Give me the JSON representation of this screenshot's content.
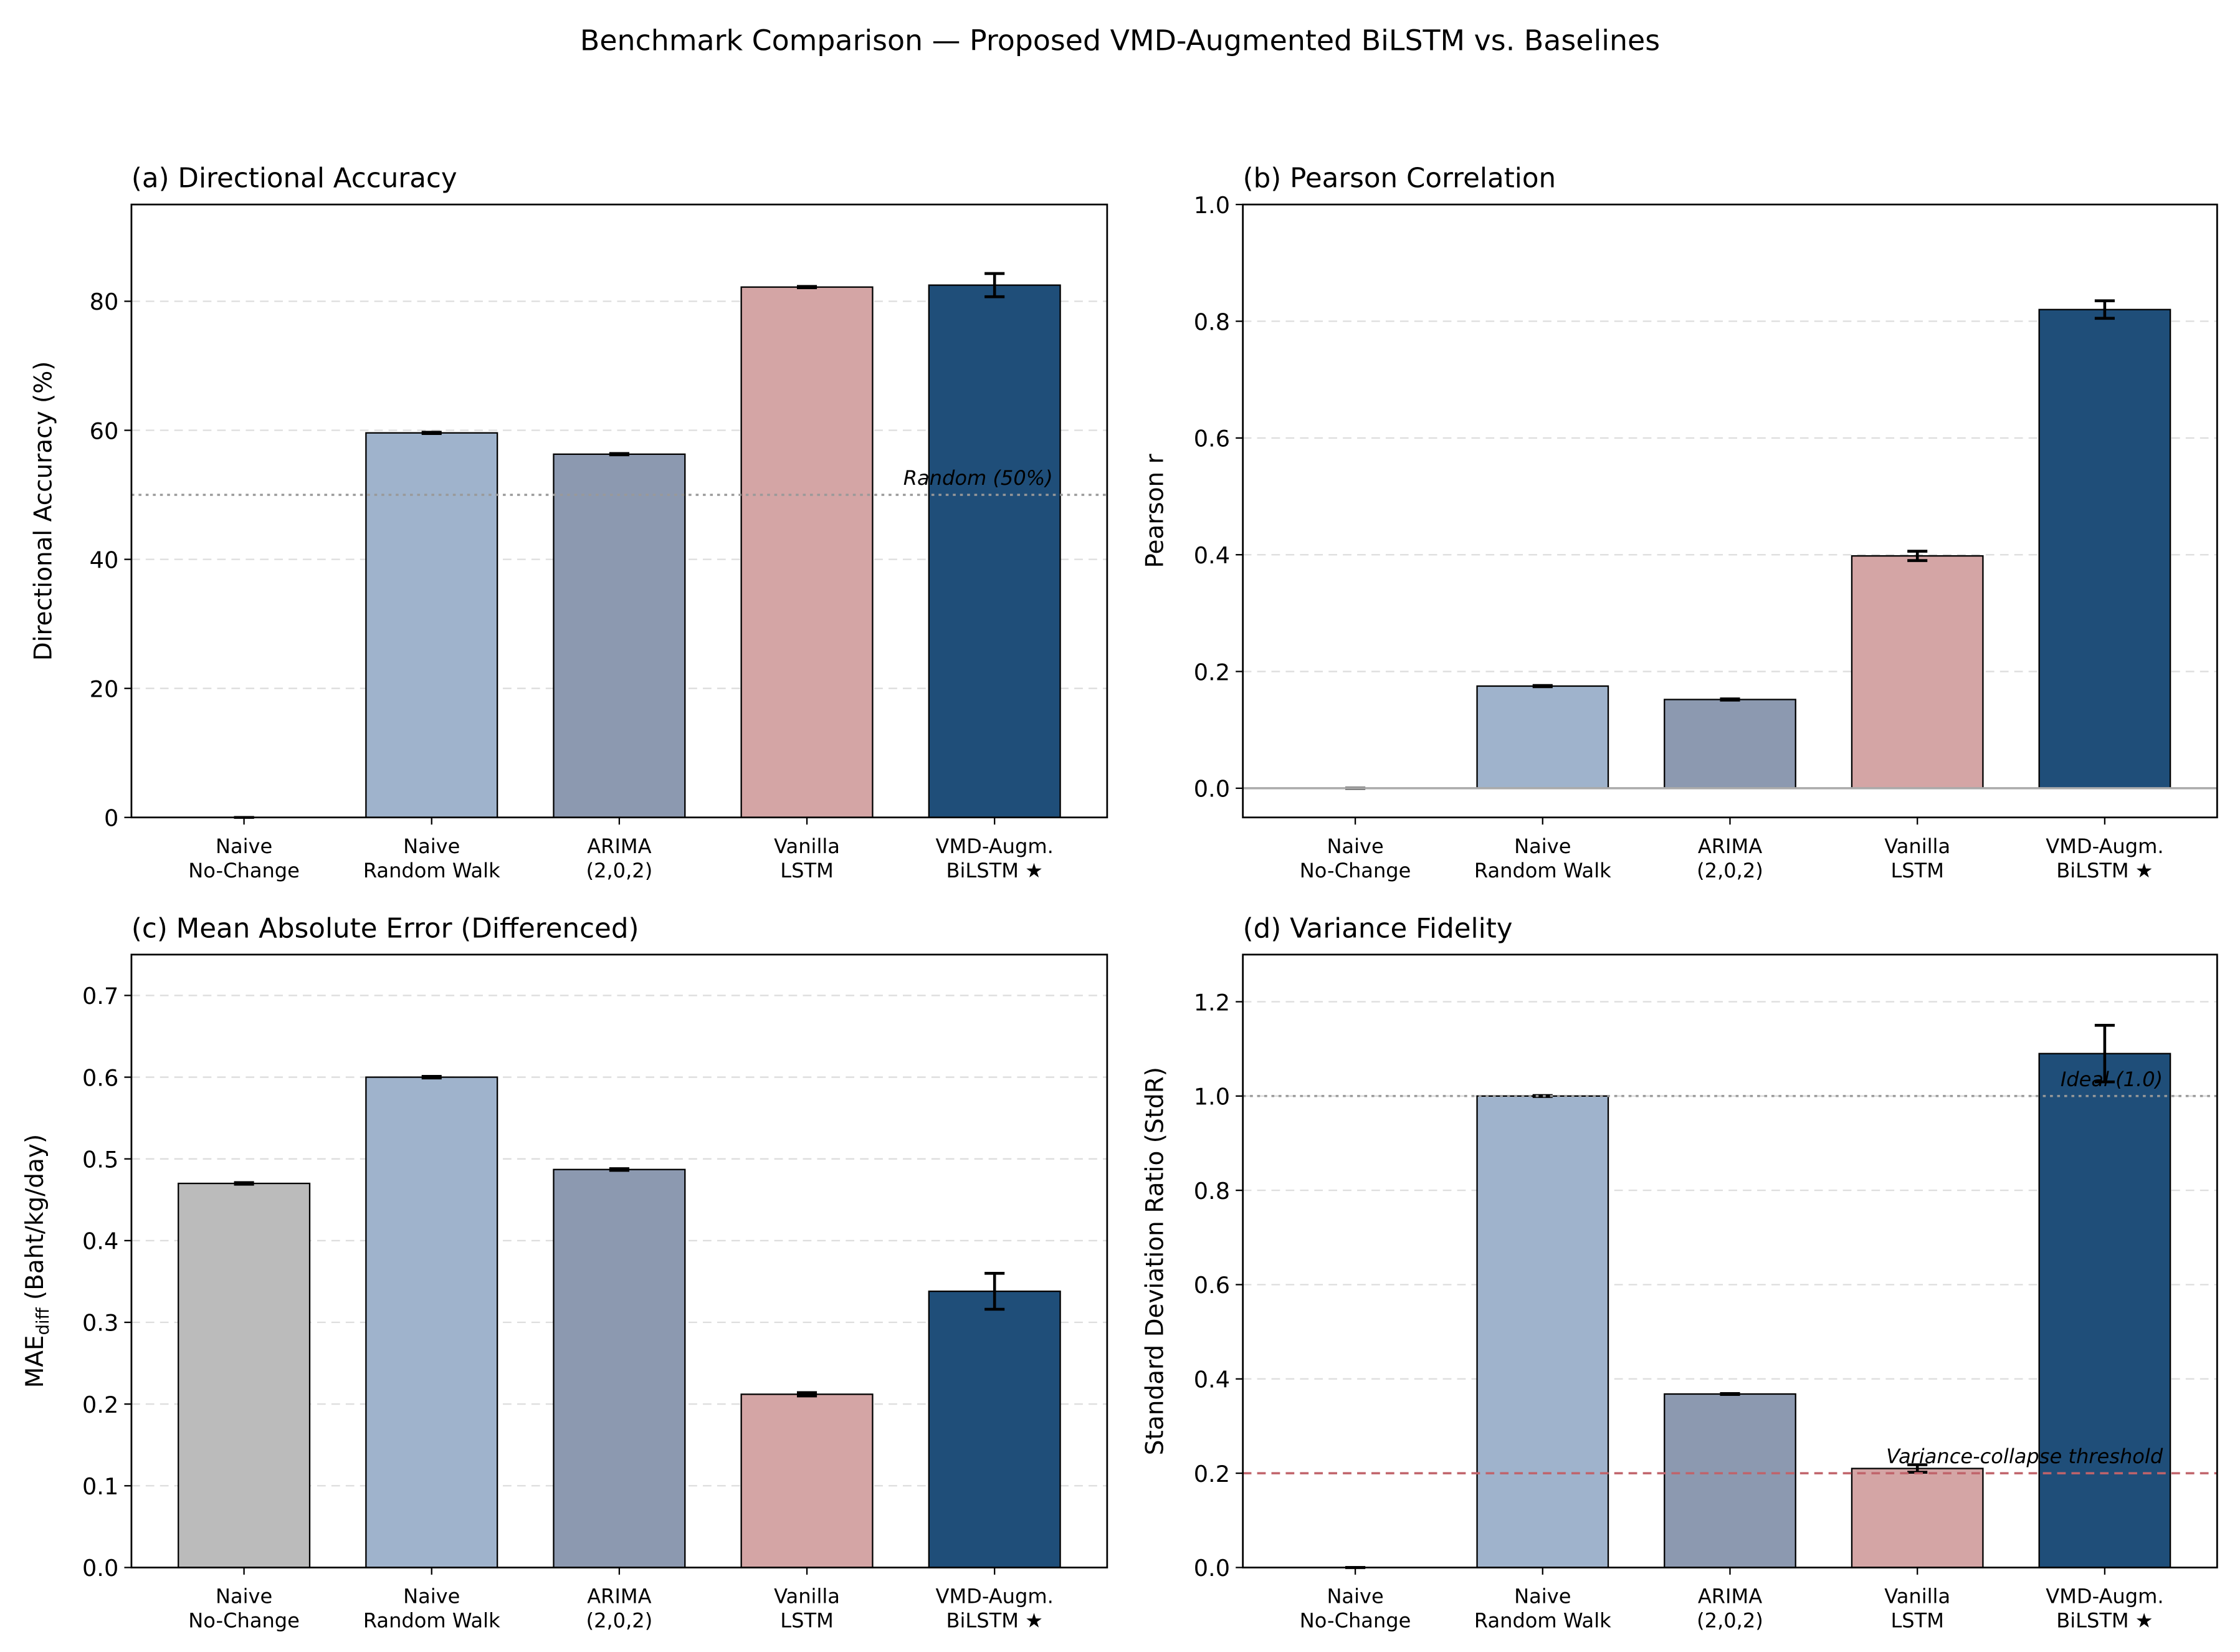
{
  "title": "Benchmark Comparison — Proposed VMD-Augmented BiLSTM vs. Baselines",
  "chart_data": [
    {
      "type": "bar",
      "title": "(a) Directional Accuracy",
      "ylabel": "Directional Accuracy (%)",
      "categories": [
        [
          "Naive",
          "No-Change"
        ],
        [
          "Naive",
          "Random Walk"
        ],
        [
          "ARIMA",
          "(2,0,2)"
        ],
        [
          "Vanilla",
          "LSTM"
        ],
        [
          "VMD-Augm.",
          "BiLSTM ★"
        ]
      ],
      "values": [
        0,
        59.6,
        56.3,
        82.2,
        82.5
      ],
      "errors": [
        0,
        0.1,
        0.1,
        0.1,
        1.8
      ],
      "colors": [
        "#bbbbbb",
        "#9fb3cc",
        "#8c99b0",
        "#d4a5a5",
        "#1f4e79"
      ],
      "ylim": [
        0,
        95
      ],
      "yticks": [
        0,
        20,
        40,
        60,
        80
      ],
      "grid": true,
      "reference_lines": [
        {
          "y": 50,
          "label": "Random (50%)",
          "color": "#999999",
          "style": "dotted",
          "label_color": "#777777"
        }
      ]
    },
    {
      "type": "bar",
      "title": "(b) Pearson Correlation",
      "ylabel": "Pearson r",
      "categories": [
        [
          "Naive",
          "No-Change"
        ],
        [
          "Naive",
          "Random Walk"
        ],
        [
          "ARIMA",
          "(2,0,2)"
        ],
        [
          "Vanilla",
          "LSTM"
        ],
        [
          "VMD-Augm.",
          "BiLSTM ★"
        ]
      ],
      "values": [
        0,
        0.175,
        0.152,
        0.398,
        0.82
      ],
      "errors": [
        0,
        0.001,
        0.001,
        0.008,
        0.015
      ],
      "colors": [
        "#bbbbbb",
        "#9fb3cc",
        "#8c99b0",
        "#d4a5a5",
        "#1f4e79"
      ],
      "ylim": [
        -0.05,
        1.0
      ],
      "yticks": [
        {
          "value": 0,
          "label": "0.0"
        },
        0.2,
        0.4,
        0.6,
        0.8,
        {
          "value": 1,
          "label": "1.0"
        }
      ],
      "grid": true,
      "reference_lines": [
        {
          "y": 0,
          "color": "#aaaaaa",
          "style": "solid"
        }
      ]
    },
    {
      "type": "bar",
      "title": "(c) Mean Absolute Error (Differenced)",
      "ylabel": "MAE",
      "ylabel_subscript": "diff",
      "ylabel_suffix": "(Baht/kg/day)",
      "categories": [
        [
          "Naive",
          "No-Change"
        ],
        [
          "Naive",
          "Random Walk"
        ],
        [
          "ARIMA",
          "(2,0,2)"
        ],
        [
          "Vanilla",
          "LSTM"
        ],
        [
          "VMD-Augm.",
          "BiLSTM ★"
        ]
      ],
      "values": [
        0.47,
        0.6,
        0.487,
        0.212,
        0.338
      ],
      "errors": [
        0.001,
        0.001,
        0.001,
        0.002,
        0.022
      ],
      "colors": [
        "#bbbbbb",
        "#9fb3cc",
        "#8c99b0",
        "#d4a5a5",
        "#1f4e79"
      ],
      "ylim": [
        0,
        0.75
      ],
      "yticks": [
        {
          "value": 0,
          "label": "0.0"
        },
        0.1,
        0.2,
        0.3,
        0.4,
        0.5,
        0.6,
        0.7
      ],
      "grid": true,
      "reference_lines": []
    },
    {
      "type": "bar",
      "title": "(d) Variance Fidelity",
      "ylabel": "Standard Deviation Ratio (StdR)",
      "categories": [
        [
          "Naive",
          "No-Change"
        ],
        [
          "Naive",
          "Random Walk"
        ],
        [
          "ARIMA",
          "(2,0,2)"
        ],
        [
          "Vanilla",
          "LSTM"
        ],
        [
          "VMD-Augm.",
          "BiLSTM ★"
        ]
      ],
      "values": [
        0,
        1.0,
        0.368,
        0.21,
        1.09
      ],
      "errors": [
        0,
        0.001,
        0.001,
        0.008,
        0.06
      ],
      "colors": [
        "#bbbbbb",
        "#9fb3cc",
        "#8c99b0",
        "#d4a5a5",
        "#1f4e79"
      ],
      "ylim": [
        0,
        1.3
      ],
      "yticks": [
        {
          "value": 0,
          "label": "0.0"
        },
        0.2,
        0.4,
        0.6,
        0.8,
        {
          "value": 1,
          "label": "1.0"
        },
        1.2
      ],
      "grid": true,
      "reference_lines": [
        {
          "y": 1,
          "label": "Ideal (1.0)",
          "color": "#999999",
          "style": "dotted",
          "label_color": "#777777"
        },
        {
          "y": 0.2,
          "label": "Variance-collapse threshold",
          "color": "#c0636a",
          "style": "dashed",
          "label_color": "#b22222"
        }
      ]
    }
  ]
}
